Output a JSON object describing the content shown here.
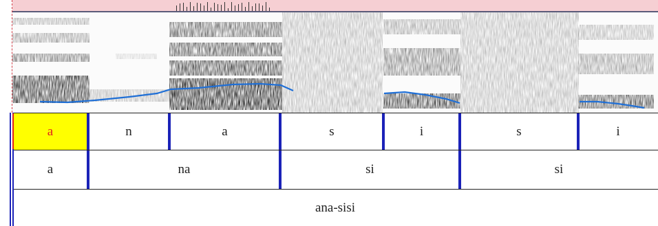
{
  "tiers": {
    "segments": [
      {
        "label": "a",
        "selected": true
      },
      {
        "label": "n",
        "selected": false
      },
      {
        "label": "a",
        "selected": false
      },
      {
        "label": "s",
        "selected": false
      },
      {
        "label": "i",
        "selected": false
      },
      {
        "label": "s",
        "selected": false
      },
      {
        "label": "i",
        "selected": false
      }
    ],
    "syllables": [
      "a",
      "na",
      "si",
      "si"
    ],
    "word": "ana-sisi"
  },
  "colors": {
    "boundary": "#1b22b8",
    "selection": "#ffff00",
    "selected_text": "#e02020",
    "pitch_track": "#1f6fd6",
    "waveform_bg": "#f6cfd3"
  }
}
